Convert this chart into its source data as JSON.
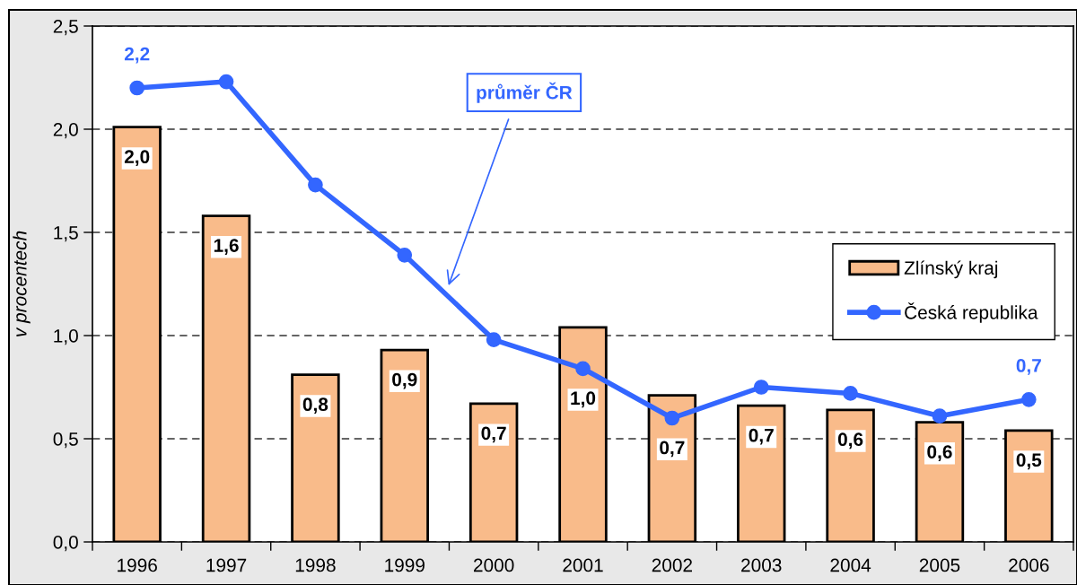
{
  "chart_data": {
    "type": "bar",
    "ylabel": "v procentech",
    "categories": [
      "1996",
      "1997",
      "1998",
      "1999",
      "2000",
      "2001",
      "2002",
      "2003",
      "2004",
      "2005",
      "2006"
    ],
    "series": [
      {
        "name": "Zlínský kraj",
        "color": "#f9bb8a",
        "values": [
          2.01,
          1.58,
          0.81,
          0.93,
          0.67,
          1.04,
          0.71,
          0.66,
          0.64,
          0.58,
          0.54
        ],
        "value_labels": [
          "2,0",
          "1,6",
          "0,8",
          "0,9",
          "0,7",
          "1,0",
          "0,7",
          "0,7",
          "0,6",
          "0,6",
          "0,5"
        ]
      },
      {
        "name": "Česká republika",
        "type": "line",
        "color": "#3366ff",
        "values": [
          2.2,
          2.23,
          1.73,
          1.39,
          0.98,
          0.84,
          0.6,
          0.75,
          0.72,
          0.61,
          0.69
        ],
        "value_labels": [
          "2,2",
          null,
          null,
          null,
          null,
          null,
          null,
          null,
          null,
          null,
          "0,7"
        ]
      }
    ],
    "ylim": [
      0,
      2.5
    ],
    "yticks": [
      {
        "value": 0,
        "label": "0,0"
      },
      {
        "value": 0.5,
        "label": "0,5"
      },
      {
        "value": 1,
        "label": "1,0"
      },
      {
        "value": 1.5,
        "label": "1,5"
      },
      {
        "value": 2,
        "label": "2,0"
      },
      {
        "value": 2.5,
        "label": "2,5"
      }
    ],
    "grid": "y",
    "legend": "right",
    "marker": "circle",
    "annotations": [
      "průměr ČR"
    ]
  }
}
